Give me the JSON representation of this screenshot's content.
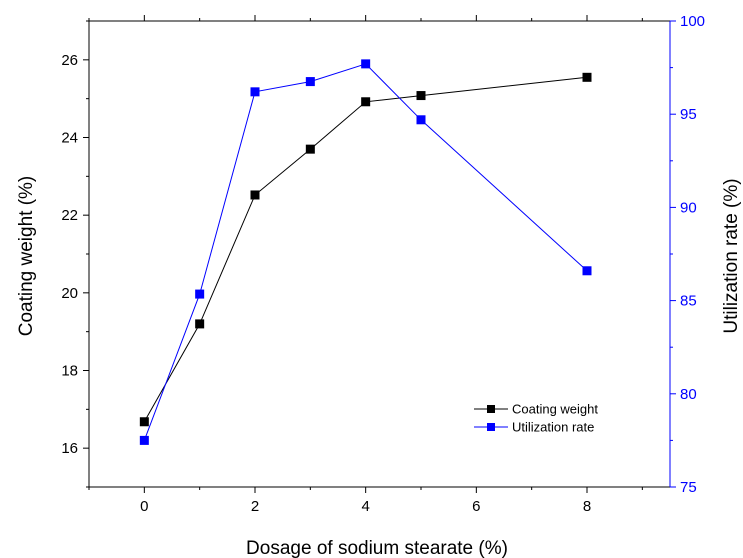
{
  "chart_data": {
    "type": "line",
    "xlabel": "Dosage of sodium stearate (%)",
    "ylabel_left": "Coating weight (%)",
    "ylabel_right": "Utilization rate (%)",
    "xlim": [
      -1,
      9.5
    ],
    "ylim_left": [
      15,
      27
    ],
    "ylim_right": [
      75,
      100
    ],
    "x_ticks": [
      0,
      2,
      4,
      6,
      8
    ],
    "y_ticks_left": [
      16,
      18,
      20,
      22,
      24,
      26
    ],
    "y_ticks_right": [
      75,
      80,
      85,
      90,
      95,
      100
    ],
    "axis_colors": {
      "left": "#000000",
      "right": "#0000ff"
    },
    "grid": false,
    "legend_position": "lower-right",
    "series": [
      {
        "name": "Coating weight",
        "axis": "left",
        "color": "#000000",
        "marker": "square",
        "x": [
          0,
          1,
          2,
          3,
          4,
          5,
          8
        ],
        "values": [
          16.68,
          19.2,
          22.52,
          23.7,
          24.92,
          25.08,
          25.55
        ]
      },
      {
        "name": "Utilization rate",
        "axis": "right",
        "color": "#0000ff",
        "marker": "square",
        "x": [
          0,
          1,
          2,
          3,
          4,
          5,
          8
        ],
        "values": [
          77.5,
          85.35,
          96.2,
          96.75,
          97.7,
          94.7,
          86.6
        ]
      }
    ]
  }
}
